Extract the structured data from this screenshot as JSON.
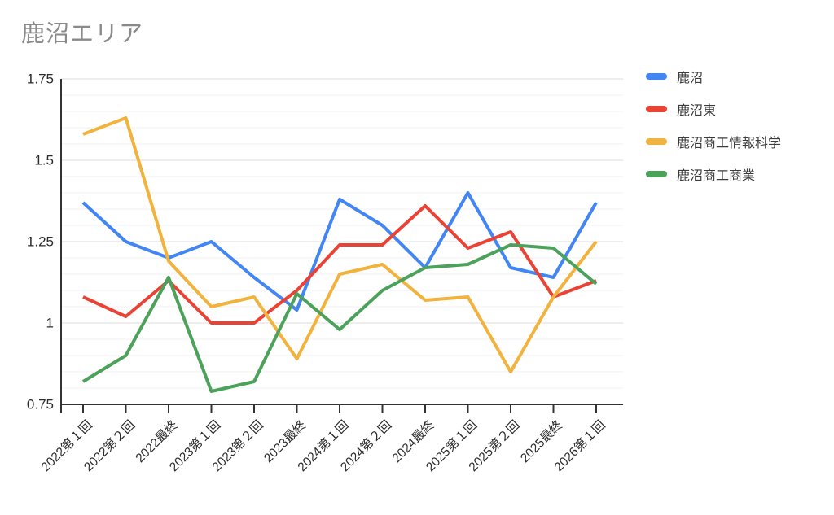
{
  "title": "鹿沼エリア",
  "chart_data": {
    "type": "line",
    "title": "鹿沼エリア",
    "categories": [
      "2022第１回",
      "2022第２回",
      "2022最終",
      "2023第１回",
      "2023第２回",
      "2023最終",
      "2024第１回",
      "2024第２回",
      "2024最終",
      "2025第１回",
      "2025第２回",
      "2025最終",
      "2026第１回"
    ],
    "series": [
      {
        "name": "鹿沼",
        "color": "#4285F4",
        "values": [
          1.37,
          1.25,
          1.2,
          1.25,
          1.14,
          1.04,
          1.38,
          1.3,
          1.17,
          1.4,
          1.17,
          1.14,
          1.37
        ]
      },
      {
        "name": "鹿沼東",
        "color": "#EA4335",
        "values": [
          1.08,
          1.02,
          1.13,
          1.0,
          1.0,
          1.1,
          1.24,
          1.24,
          1.36,
          1.23,
          1.28,
          1.08,
          1.13
        ]
      },
      {
        "name": "鹿沼商工情報科学",
        "color": "#F2B23E",
        "values": [
          1.58,
          1.63,
          1.19,
          1.05,
          1.08,
          0.89,
          1.15,
          1.18,
          1.07,
          1.08,
          0.85,
          1.08,
          1.25
        ]
      },
      {
        "name": "鹿沼商工商業",
        "color": "#4CA25B",
        "values": [
          0.82,
          0.9,
          1.14,
          0.79,
          0.82,
          1.09,
          0.98,
          1.1,
          1.17,
          1.18,
          1.24,
          1.23,
          1.12
        ]
      }
    ],
    "xlabel": "",
    "ylabel": "",
    "ylim": [
      0.75,
      1.75
    ],
    "y_tick_values": [
      1.75,
      1.5,
      1.25,
      1,
      0.75
    ],
    "y_tick_labels": [
      "1.75",
      "1.5",
      "1.25",
      "1",
      "0.75"
    ],
    "minor_grid_step": 0.05,
    "grid": true,
    "legend_position": "right"
  },
  "colors": {
    "title_text": "#8a8a8a",
    "axis": "#333333",
    "tick_label": "#2b2b2b",
    "major_grid": "#dedede",
    "minor_grid": "#f2f2f2",
    "background": "#ffffff"
  }
}
